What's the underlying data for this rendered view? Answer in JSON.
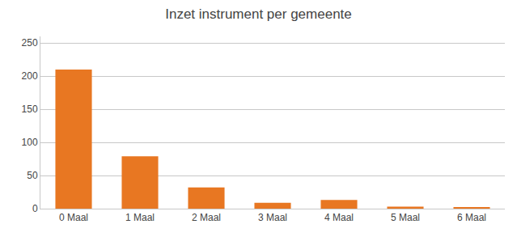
{
  "chart_data": {
    "type": "bar",
    "title": "Inzet instrument per gemeente",
    "categories": [
      "0 Maal",
      "1 Maal",
      "2 Maal",
      "3 Maal",
      "4 Maal",
      "5 Maal",
      "6 Maal"
    ],
    "values": [
      210,
      79,
      32,
      9,
      13,
      3,
      2
    ],
    "color": "#E87722",
    "ylim": [
      0,
      260
    ],
    "yticks": [
      0,
      50,
      100,
      150,
      200,
      250
    ],
    "grid": true
  }
}
